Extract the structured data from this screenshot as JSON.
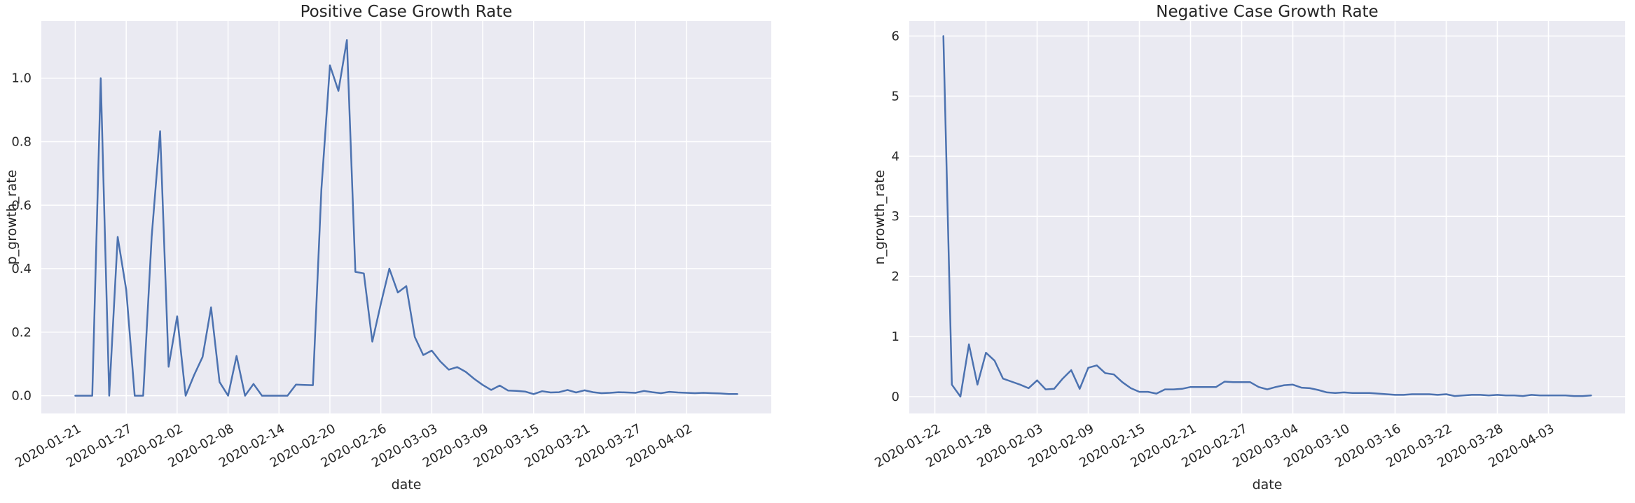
{
  "chart_data": [
    {
      "type": "line",
      "title": "Positive Case Growth Rate",
      "xlabel": "date",
      "ylabel": "p_growth_rate",
      "x_ticks": [
        "2020-01-21",
        "2020-01-27",
        "2020-02-02",
        "2020-02-08",
        "2020-02-14",
        "2020-02-20",
        "2020-02-26",
        "2020-03-03",
        "2020-03-09",
        "2020-03-15",
        "2020-03-21",
        "2020-03-27",
        "2020-04-02"
      ],
      "y_ticks": [
        "0.0",
        "0.2",
        "0.4",
        "0.6",
        "0.8",
        "1.0"
      ],
      "x_range": [
        "2020-01-17",
        "2020-04-12"
      ],
      "ylim": [
        -0.056,
        1.18
      ],
      "grid": true,
      "line_color": "#4c72b0",
      "series": [
        {
          "x": [
            "2020-01-21",
            "2020-01-22",
            "2020-01-23",
            "2020-01-24",
            "2020-01-25",
            "2020-01-26",
            "2020-01-27",
            "2020-01-28",
            "2020-01-29",
            "2020-01-30",
            "2020-01-31",
            "2020-02-01",
            "2020-02-02",
            "2020-02-03",
            "2020-02-04",
            "2020-02-05",
            "2020-02-06",
            "2020-02-07",
            "2020-02-08",
            "2020-02-09",
            "2020-02-10",
            "2020-02-11",
            "2020-02-12",
            "2020-02-13",
            "2020-02-14",
            "2020-02-15",
            "2020-02-16",
            "2020-02-17",
            "2020-02-18",
            "2020-02-19",
            "2020-02-20",
            "2020-02-21",
            "2020-02-22",
            "2020-02-23",
            "2020-02-24",
            "2020-02-25",
            "2020-02-26",
            "2020-02-27",
            "2020-02-28",
            "2020-02-29",
            "2020-03-01",
            "2020-03-02",
            "2020-03-03",
            "2020-03-04",
            "2020-03-05",
            "2020-03-06",
            "2020-03-07",
            "2020-03-08",
            "2020-03-09",
            "2020-03-10",
            "2020-03-11",
            "2020-03-12",
            "2020-03-13",
            "2020-03-14",
            "2020-03-15",
            "2020-03-16",
            "2020-03-17",
            "2020-03-18",
            "2020-03-19",
            "2020-03-20",
            "2020-03-21",
            "2020-03-22",
            "2020-03-23",
            "2020-03-24",
            "2020-03-25",
            "2020-03-26",
            "2020-03-27",
            "2020-03-28",
            "2020-03-29",
            "2020-03-30",
            "2020-03-31",
            "2020-04-01",
            "2020-04-02",
            "2020-04-03",
            "2020-04-04",
            "2020-04-05",
            "2020-04-06",
            "2020-04-07",
            "2020-04-08"
          ],
          "y": [
            0.0,
            0.0,
            0.0,
            1.0,
            0.0,
            0.5,
            0.333,
            0.0,
            0.0,
            0.5,
            0.833,
            0.091,
            0.25,
            0.0,
            0.065,
            0.122,
            0.278,
            0.043,
            0.0,
            0.125,
            0.0,
            0.037,
            0.0,
            0.0,
            0.0,
            0.0,
            0.035,
            0.034,
            0.033,
            0.65,
            1.04,
            0.96,
            1.12,
            0.39,
            0.385,
            0.17,
            0.29,
            0.4,
            0.325,
            0.345,
            0.185,
            0.128,
            0.142,
            0.108,
            0.082,
            0.09,
            0.075,
            0.053,
            0.034,
            0.018,
            0.032,
            0.016,
            0.015,
            0.013,
            0.005,
            0.014,
            0.01,
            0.011,
            0.018,
            0.01,
            0.017,
            0.011,
            0.008,
            0.009,
            0.011,
            0.01,
            0.009,
            0.015,
            0.011,
            0.008,
            0.012,
            0.01,
            0.009,
            0.008,
            0.009,
            0.008,
            0.007,
            0.005,
            0.005
          ]
        }
      ]
    },
    {
      "type": "line",
      "title": "Negative Case Growth Rate",
      "xlabel": "date",
      "ylabel": "n_growth_rate",
      "x_ticks": [
        "2020-01-22",
        "2020-01-28",
        "2020-02-03",
        "2020-02-09",
        "2020-02-15",
        "2020-02-21",
        "2020-02-27",
        "2020-03-04",
        "2020-03-10",
        "2020-03-16",
        "2020-03-22",
        "2020-03-28",
        "2020-04-03"
      ],
      "y_ticks": [
        "0",
        "1",
        "2",
        "3",
        "4",
        "5",
        "6"
      ],
      "x_range": [
        "2020-01-19",
        "2020-04-12"
      ],
      "ylim": [
        -0.28,
        6.25
      ],
      "grid": true,
      "line_color": "#4c72b0",
      "series": [
        {
          "x": [
            "2020-01-23",
            "2020-01-24",
            "2020-01-25",
            "2020-01-26",
            "2020-01-27",
            "2020-01-28",
            "2020-01-29",
            "2020-01-30",
            "2020-01-31",
            "2020-02-01",
            "2020-02-02",
            "2020-02-03",
            "2020-02-04",
            "2020-02-05",
            "2020-02-06",
            "2020-02-07",
            "2020-02-08",
            "2020-02-09",
            "2020-02-10",
            "2020-02-11",
            "2020-02-12",
            "2020-02-13",
            "2020-02-14",
            "2020-02-15",
            "2020-02-16",
            "2020-02-17",
            "2020-02-18",
            "2020-02-19",
            "2020-02-20",
            "2020-02-21",
            "2020-02-22",
            "2020-02-23",
            "2020-02-24",
            "2020-02-25",
            "2020-02-26",
            "2020-02-27",
            "2020-02-28",
            "2020-02-29",
            "2020-03-01",
            "2020-03-02",
            "2020-03-03",
            "2020-03-04",
            "2020-03-05",
            "2020-03-06",
            "2020-03-07",
            "2020-03-08",
            "2020-03-09",
            "2020-03-10",
            "2020-03-11",
            "2020-03-12",
            "2020-03-13",
            "2020-03-14",
            "2020-03-15",
            "2020-03-16",
            "2020-03-17",
            "2020-03-18",
            "2020-03-19",
            "2020-03-20",
            "2020-03-21",
            "2020-03-22",
            "2020-03-23",
            "2020-03-24",
            "2020-03-25",
            "2020-03-26",
            "2020-03-27",
            "2020-03-28",
            "2020-03-29",
            "2020-03-30",
            "2020-03-31",
            "2020-04-01",
            "2020-04-02",
            "2020-04-03",
            "2020-04-04",
            "2020-04-05",
            "2020-04-06",
            "2020-04-07",
            "2020-04-08"
          ],
          "y": [
            6.0,
            0.2,
            0.0,
            0.87,
            0.2,
            0.73,
            0.6,
            0.3,
            0.25,
            0.2,
            0.14,
            0.27,
            0.12,
            0.13,
            0.3,
            0.44,
            0.13,
            0.48,
            0.52,
            0.39,
            0.37,
            0.24,
            0.14,
            0.08,
            0.08,
            0.05,
            0.12,
            0.12,
            0.13,
            0.16,
            0.16,
            0.16,
            0.16,
            0.25,
            0.24,
            0.24,
            0.24,
            0.16,
            0.12,
            0.16,
            0.19,
            0.2,
            0.15,
            0.14,
            0.11,
            0.07,
            0.06,
            0.07,
            0.06,
            0.06,
            0.06,
            0.05,
            0.04,
            0.03,
            0.03,
            0.04,
            0.04,
            0.04,
            0.03,
            0.04,
            0.01,
            0.02,
            0.03,
            0.03,
            0.02,
            0.03,
            0.02,
            0.02,
            0.01,
            0.03,
            0.02,
            0.02,
            0.02,
            0.02,
            0.01,
            0.01,
            0.02
          ]
        }
      ]
    }
  ]
}
